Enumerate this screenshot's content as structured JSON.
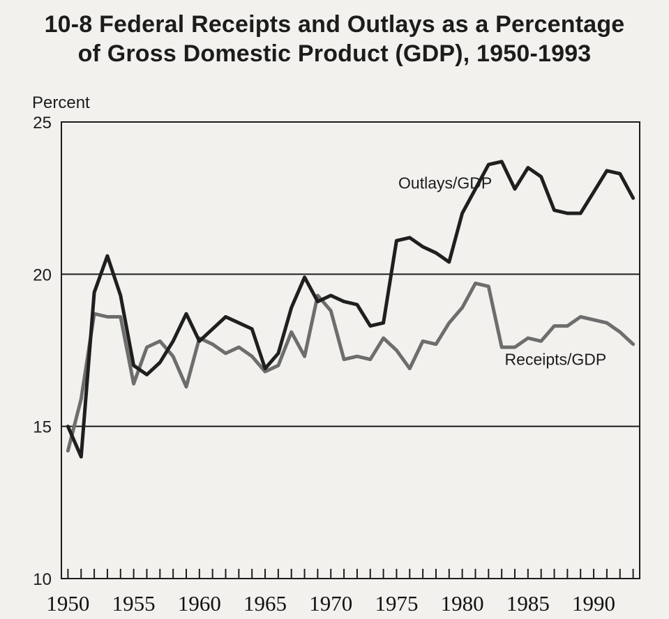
{
  "chart_data": {
    "type": "line",
    "title_line1": "10-8 Federal Receipts and Outlays as a Percentage",
    "title_line2": "of Gross Domestic Product (GDP), 1950-1993",
    "ylabel": "Percent",
    "xlabel": "",
    "ylim": [
      10,
      25
    ],
    "xlim": [
      1949.5,
      1993.5
    ],
    "yticks": [
      "10",
      "15",
      "20",
      "25"
    ],
    "xticks": [
      "1950",
      "1955",
      "1960",
      "1965",
      "1970",
      "1975",
      "1980",
      "1985",
      "1990"
    ],
    "gridlines_y": [
      15,
      20,
      25
    ],
    "grid": true,
    "legend": "none",
    "x": [
      1950,
      1951,
      1952,
      1953,
      1954,
      1955,
      1956,
      1957,
      1958,
      1959,
      1960,
      1961,
      1962,
      1963,
      1964,
      1965,
      1966,
      1967,
      1968,
      1969,
      1970,
      1971,
      1972,
      1973,
      1974,
      1975,
      1976,
      1977,
      1978,
      1979,
      1980,
      1981,
      1982,
      1983,
      1984,
      1985,
      1986,
      1987,
      1988,
      1989,
      1990,
      1991,
      1992,
      1993
    ],
    "series": [
      {
        "name": "Outlays/GDP",
        "values": [
          15.0,
          14.0,
          19.4,
          20.6,
          19.3,
          17.0,
          16.7,
          17.1,
          17.8,
          18.7,
          17.8,
          18.2,
          18.6,
          18.4,
          18.2,
          16.9,
          17.4,
          18.9,
          19.9,
          19.1,
          19.3,
          19.1,
          19.0,
          18.3,
          18.4,
          21.1,
          21.2,
          20.9,
          20.7,
          20.4,
          22.0,
          22.8,
          23.6,
          23.7,
          22.8,
          23.5,
          23.2,
          22.1,
          22.0,
          22.0,
          22.7,
          23.4,
          23.3,
          22.5
        ],
        "color": "#1f1f1f"
      },
      {
        "name": "Receipts/GDP",
        "values": [
          14.2,
          15.9,
          18.7,
          18.6,
          18.6,
          16.4,
          17.6,
          17.8,
          17.3,
          16.3,
          17.9,
          17.7,
          17.4,
          17.6,
          17.3,
          16.8,
          17.0,
          18.1,
          17.3,
          19.3,
          18.8,
          17.2,
          17.3,
          17.2,
          17.9,
          17.5,
          16.9,
          17.8,
          17.7,
          18.4,
          18.9,
          19.7,
          19.6,
          17.6,
          17.6,
          17.9,
          17.8,
          18.3,
          18.3,
          18.6,
          18.5,
          18.4,
          18.1,
          17.7
        ],
        "color": "#6d6d6d"
      }
    ]
  }
}
